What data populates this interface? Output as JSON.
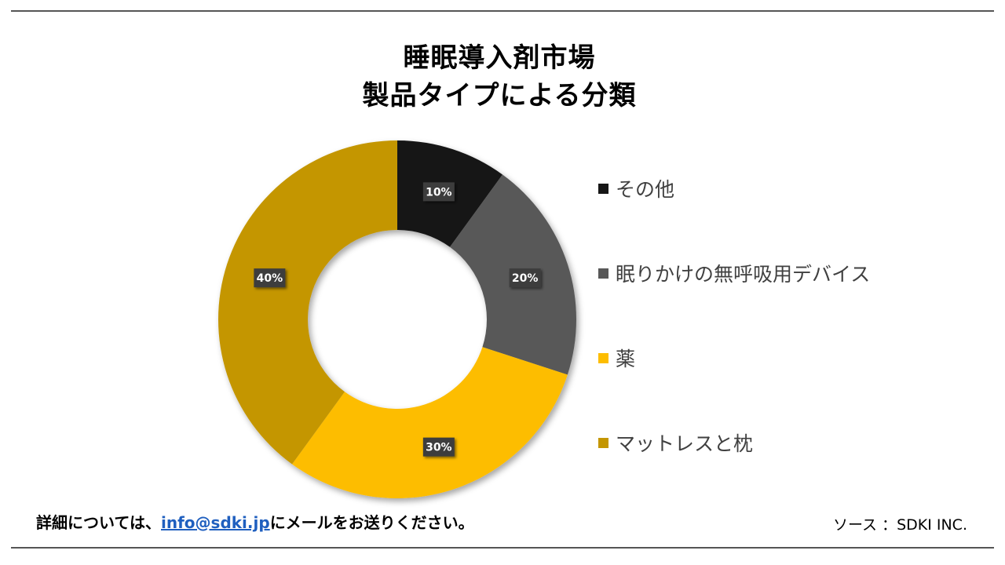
{
  "title_line1": "睡眠導入剤市場",
  "title_line2": "製品タイプによる分類",
  "chart_data": {
    "type": "pie",
    "donut": true,
    "title": "睡眠導入剤市場 製品タイプによる分類",
    "categories": [
      "その他",
      "眠りかけの無呼吸用デバイス",
      "薬",
      "マットレスと枕"
    ],
    "values": [
      10,
      20,
      30,
      40
    ],
    "labels": [
      "10%",
      "20%",
      "30%",
      "40%"
    ],
    "colors": [
      "#161616",
      "#585858",
      "#fdbd00",
      "#c49600"
    ],
    "legend_position": "right"
  },
  "footer": {
    "prefix": "詳細については、",
    "email": "info@sdki.jp",
    "suffix": "にメールをお送りください。"
  },
  "source": "ソース ：SDKI INC."
}
